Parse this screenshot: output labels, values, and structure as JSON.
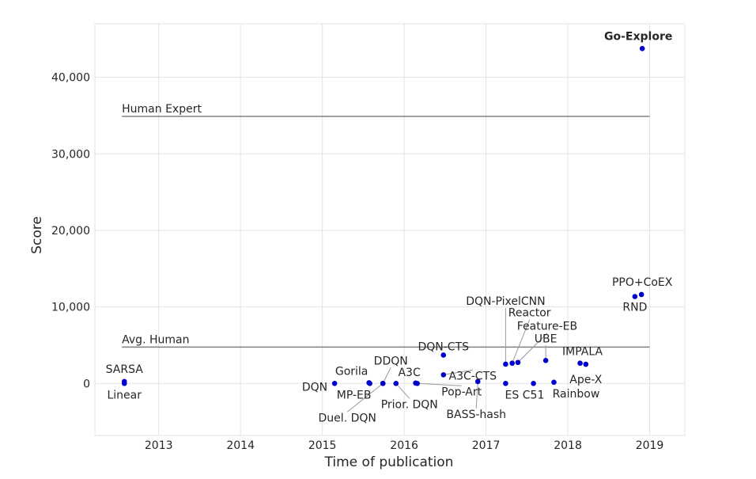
{
  "chart_data": {
    "type": "scatter",
    "title": "",
    "xlabel": "Time of publication",
    "ylabel": "Score",
    "xlim": [
      2012.22,
      2019.43
    ],
    "ylim": [
      -6800,
      47000
    ],
    "grid": true,
    "x_ticks": [
      2013,
      2014,
      2015,
      2016,
      2017,
      2018,
      2019
    ],
    "x_tick_labels": [
      "2013",
      "2014",
      "2015",
      "2016",
      "2017",
      "2018",
      "2019"
    ],
    "y_ticks": [
      0,
      10000,
      20000,
      30000,
      40000
    ],
    "y_tick_labels": [
      "0",
      "10,000",
      "20,000",
      "30,000",
      "40,000"
    ],
    "point_color": "#0000cc",
    "reference_lines": [
      {
        "label": "Human Expert",
        "y": 34900,
        "x_start": 2012.55,
        "x_end": 2019.0,
        "color": "#808080"
      },
      {
        "label": "Avg. Human",
        "y": 4750,
        "x_start": 2012.55,
        "x_end": 2019.0,
        "color": "#808080"
      }
    ],
    "points": [
      {
        "label": "SARSA",
        "x": 2012.58,
        "y": 259,
        "bold": false
      },
      {
        "label": "Linear",
        "x": 2012.58,
        "y": 0,
        "bold": false
      },
      {
        "label": "DQN",
        "x": 2015.15,
        "y": 0,
        "bold": false
      },
      {
        "label": "Gorila",
        "x": 2015.57,
        "y": 84,
        "bold": false
      },
      {
        "label": "MP-EB",
        "x": 2015.58,
        "y": 0,
        "bold": false
      },
      {
        "label": "DDQN",
        "x": 2015.74,
        "y": 0,
        "bold": false
      },
      {
        "label": "Duel. DQN",
        "x": 2015.74,
        "y": 0,
        "bold": false
      },
      {
        "label": "Prior. DQN",
        "x": 2015.9,
        "y": 0,
        "bold": false
      },
      {
        "label": "A3C",
        "x": 2016.14,
        "y": 53,
        "bold": false
      },
      {
        "label": "Pop-Art",
        "x": 2016.16,
        "y": 0,
        "bold": false
      },
      {
        "label": "DQN-CTS",
        "x": 2016.48,
        "y": 3705,
        "bold": false
      },
      {
        "label": "A3C-CTS",
        "x": 2016.48,
        "y": 1127,
        "bold": false
      },
      {
        "label": "BASS-hash",
        "x": 2016.9,
        "y": 238,
        "bold": false
      },
      {
        "label": "DQN-PixelCNN",
        "x": 2017.24,
        "y": 2514,
        "bold": false
      },
      {
        "label": "ES",
        "x": 2017.24,
        "y": 0,
        "bold": false
      },
      {
        "label": "Reactor",
        "x": 2017.32,
        "y": 2643,
        "bold": false
      },
      {
        "label": "Feature-EB",
        "x": 2017.39,
        "y": 2745,
        "bold": false
      },
      {
        "label": "C51",
        "x": 2017.58,
        "y": 0,
        "bold": false
      },
      {
        "label": "UBE",
        "x": 2017.73,
        "y": 3000,
        "bold": false
      },
      {
        "label": "Rainbow",
        "x": 2017.83,
        "y": 154,
        "bold": false
      },
      {
        "label": "IMPALA",
        "x": 2018.15,
        "y": 2643,
        "bold": false
      },
      {
        "label": "Ape-X",
        "x": 2018.22,
        "y": 2500,
        "bold": false
      },
      {
        "label": "RND",
        "x": 2018.82,
        "y": 11347,
        "bold": false
      },
      {
        "label": "PPO+CoEX",
        "x": 2018.9,
        "y": 11618,
        "bold": false
      },
      {
        "label": "Go-Explore",
        "x": 2018.91,
        "y": 43763,
        "bold": true
      }
    ]
  }
}
